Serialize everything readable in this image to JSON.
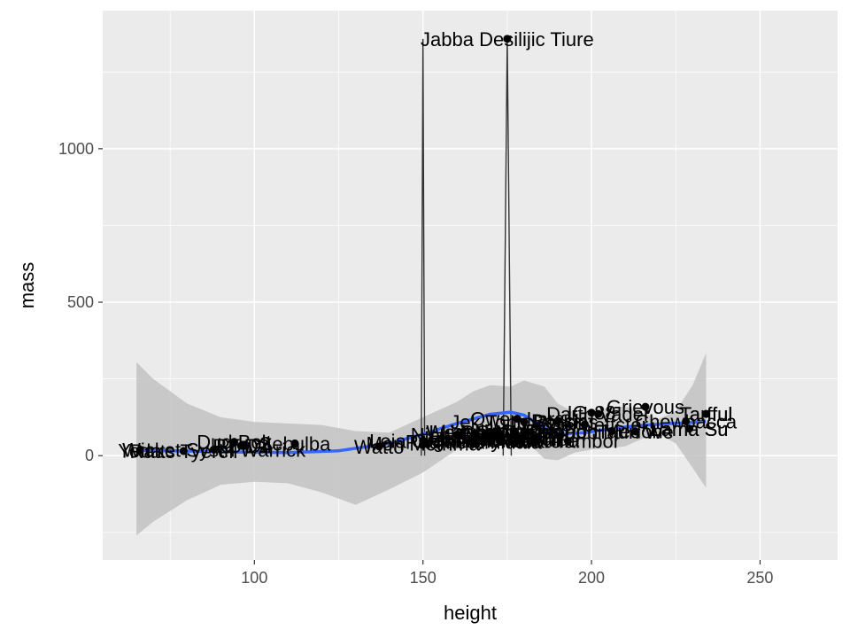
{
  "chart_data": {
    "type": "scatter",
    "title": "",
    "xlabel": "height",
    "ylabel": "mass",
    "xlim": [
      55,
      273
    ],
    "ylim": [
      -340,
      1450
    ],
    "x_ticks": [
      100,
      150,
      200,
      250
    ],
    "y_ticks": [
      0,
      500,
      1000
    ],
    "grid": true,
    "legend": "none",
    "colors": {
      "panel": "#ebebeb",
      "grid": "#ffffff",
      "point": "#000000",
      "label": "#000000",
      "smooth_line": "#3366ff",
      "ribbon": "#c2c2c2"
    },
    "points": [
      {
        "name": "Jabba Desilijic Tiure",
        "x": 175,
        "y": 1358
      },
      {
        "name": "Grievous",
        "x": 216,
        "y": 159
      },
      {
        "name": "IG-88",
        "x": 200,
        "y": 140
      },
      {
        "name": "Darth Vader",
        "x": 202,
        "y": 136
      },
      {
        "name": "Tarfful",
        "x": 234,
        "y": 136
      },
      {
        "name": "Owen Lars",
        "x": 178,
        "y": 120
      },
      {
        "name": "Bossk",
        "x": 190,
        "y": 113
      },
      {
        "name": "Chewbacca",
        "x": 228,
        "y": 112
      },
      {
        "name": "Jek Tono Porkins",
        "x": 180,
        "y": 110
      },
      {
        "name": "Dexter Jettster",
        "x": 198,
        "y": 102
      },
      {
        "name": "Tion Medon",
        "x": 206,
        "y": 80
      },
      {
        "name": "Lama Su",
        "x": 229,
        "y": 88
      },
      {
        "name": "Taun We",
        "x": 213,
        "y": 79
      },
      {
        "name": "Tarfful",
        "x": 234,
        "y": 136
      },
      {
        "name": "Lama Su",
        "x": 229,
        "y": 88
      },
      {
        "name": "Shaak Ti",
        "x": 178,
        "y": 57
      },
      {
        "name": "Sly Moore",
        "x": 178,
        "y": 48
      },
      {
        "name": "Wat Tambor",
        "x": 193,
        "y": 48
      },
      {
        "name": "Zam Wesell",
        "x": 168,
        "y": 55
      },
      {
        "name": "Leia Organa",
        "x": 150,
        "y": 49
      },
      {
        "name": "Mon Mothma",
        "x": 150,
        "y": 40
      },
      {
        "name": "Padmé Amidala",
        "x": 165,
        "y": 45
      },
      {
        "name": "Luminara Unduli",
        "x": 170,
        "y": 56.2
      },
      {
        "name": "Barriss Offee",
        "x": 166,
        "y": 50
      },
      {
        "name": "Adi Gallia",
        "x": 184,
        "y": 50
      },
      {
        "name": "Ayla Secura",
        "x": 178,
        "y": 55
      },
      {
        "name": "Luke Skywalker",
        "x": 172,
        "y": 77
      },
      {
        "name": "Han Solo",
        "x": 180,
        "y": 80
      },
      {
        "name": "Obi-Wan Kenobi",
        "x": 182,
        "y": 77
      },
      {
        "name": "Wedge Antilles",
        "x": 170,
        "y": 77
      },
      {
        "name": "Lando Calrissian",
        "x": 177,
        "y": 79
      },
      {
        "name": "Nien Nunb",
        "x": 160,
        "y": 68
      },
      {
        "name": "Yoda",
        "x": 66,
        "y": 17
      },
      {
        "name": "Ratts Tyerell",
        "x": 79,
        "y": 15
      },
      {
        "name": "Wicket Systri Warrick",
        "x": 88,
        "y": 20
      },
      {
        "name": "R2-D2",
        "x": 96,
        "y": 32
      },
      {
        "name": "R5-D4",
        "x": 97,
        "y": 32
      },
      {
        "name": "Dud Bolt",
        "x": 94,
        "y": 45
      },
      {
        "name": "Sebulba",
        "x": 112,
        "y": 40
      },
      {
        "name": "Watto",
        "x": 137,
        "y": 30
      }
    ],
    "smooth_line": {
      "x": [
        66,
        80,
        95,
        110,
        125,
        140,
        150,
        160,
        170,
        176,
        180,
        186,
        190,
        198,
        206,
        214,
        222,
        230,
        234
      ],
      "y": [
        17,
        15,
        12,
        10,
        16,
        40,
        70,
        105,
        135,
        142,
        132,
        90,
        70,
        75,
        88,
        98,
        104,
        108,
        112
      ]
    },
    "ribbon": {
      "x": [
        65,
        70,
        80,
        90,
        100,
        110,
        120,
        130,
        140,
        150,
        160,
        165,
        170,
        176,
        180,
        186,
        190,
        195,
        200,
        205,
        210,
        215,
        220,
        225,
        230,
        234
      ],
      "upper": [
        305,
        250,
        170,
        125,
        110,
        105,
        100,
        80,
        75,
        125,
        175,
        210,
        230,
        225,
        245,
        225,
        170,
        140,
        145,
        155,
        160,
        140,
        120,
        145,
        230,
        335
      ],
      "lower": [
        -260,
        -215,
        -145,
        -95,
        -85,
        -90,
        -120,
        -160,
        -110,
        -55,
        20,
        50,
        70,
        75,
        55,
        -10,
        -15,
        10,
        20,
        25,
        30,
        55,
        70,
        40,
        -40,
        -105
      ]
    },
    "spikes": [
      {
        "x": 150,
        "top": 1358,
        "half_width": 0.5
      },
      {
        "x": 175,
        "top": 1358,
        "half_width": 1.2
      }
    ]
  }
}
